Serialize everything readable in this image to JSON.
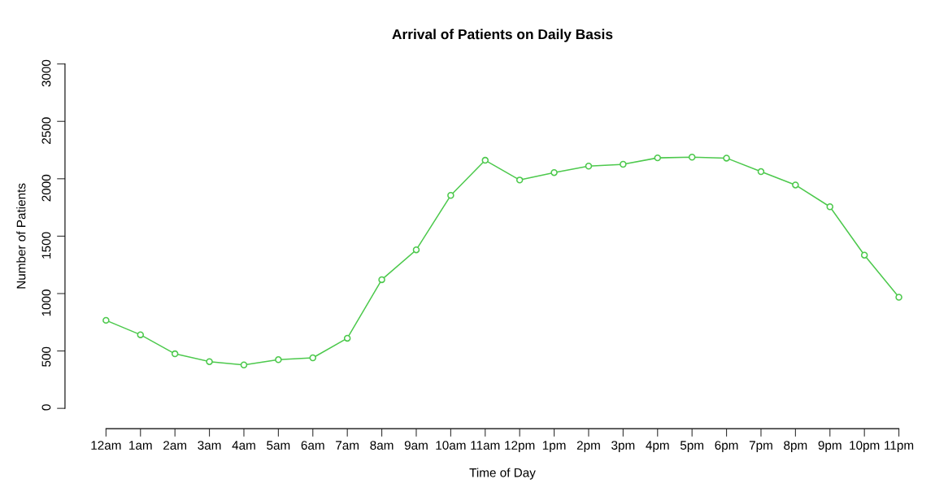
{
  "chart_data": {
    "type": "line",
    "title": "Arrival of Patients on Daily Basis",
    "xlabel": "Time of Day",
    "ylabel": "Number of Patients",
    "categories": [
      "12am",
      "1am",
      "2am",
      "3am",
      "4am",
      "5am",
      "6am",
      "7am",
      "8am",
      "9am",
      "10am",
      "11am",
      "12pm",
      "1pm",
      "2pm",
      "3pm",
      "4pm",
      "5pm",
      "6pm",
      "7pm",
      "8pm",
      "9pm",
      "10pm",
      "11pm"
    ],
    "series": [
      {
        "color": "#4dc94d",
        "values": [
          767,
          641,
          475,
          407,
          378,
          424,
          440,
          611,
          1121,
          1381,
          1855,
          2161,
          1989,
          2054,
          2110,
          2126,
          2182,
          2188,
          2180,
          2062,
          1946,
          1756,
          1335,
          968
        ]
      }
    ],
    "ylim": [
      0,
      3000
    ],
    "yticks": [
      0,
      500,
      1000,
      1500,
      2000,
      2500,
      3000
    ],
    "grid": false,
    "marker": "circle",
    "line_style": "solid"
  }
}
